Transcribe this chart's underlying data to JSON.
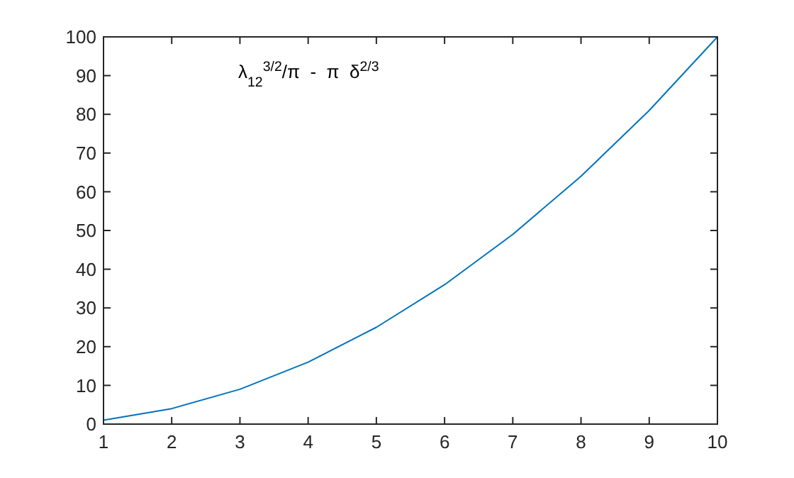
{
  "chart_data": {
    "type": "line",
    "x": [
      1,
      2,
      3,
      4,
      5,
      6,
      7,
      8,
      9,
      10
    ],
    "series": [
      {
        "color": "#0072bd",
        "values": [
          1,
          4,
          9,
          16,
          25,
          36,
          49,
          64,
          81,
          100
        ]
      }
    ],
    "xlim": [
      1,
      10
    ],
    "xticks": [
      1,
      2,
      3,
      4,
      5,
      6,
      7,
      8,
      9,
      10
    ],
    "ylim": [
      0,
      100
    ],
    "yticks": [
      0,
      10,
      20,
      30,
      40,
      50,
      60,
      70,
      80,
      90,
      100
    ],
    "annotations": [
      "λ$_{12}$$^{3/2}$/π  -  π  δ$^{2/3}$"
    ],
    "grid": false,
    "marker": "none",
    "line_style": "solid"
  }
}
